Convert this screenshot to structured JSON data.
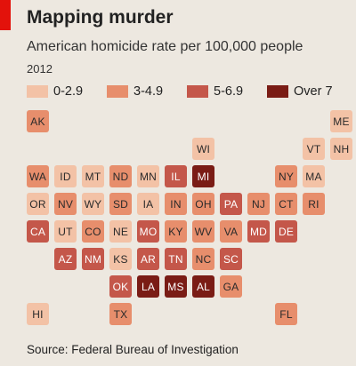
{
  "header": {
    "title": "Mapping murder",
    "subtitle": "American homicide rate per 100,000 people",
    "year": "2012"
  },
  "legend": [
    {
      "label": "0-2.9",
      "color": "#f3c2a6"
    },
    {
      "label": "3-4.9",
      "color": "#e78e6c"
    },
    {
      "label": "5-6.9",
      "color": "#c4574a"
    },
    {
      "label": "Over 7",
      "color": "#7a1c15"
    }
  ],
  "states": [
    {
      "abbr": "AK",
      "bin": 1,
      "row": 0,
      "col": 0
    },
    {
      "abbr": "ME",
      "bin": 0,
      "row": 0,
      "col": 11
    },
    {
      "abbr": "WI",
      "bin": 0,
      "row": 1,
      "col": 6
    },
    {
      "abbr": "VT",
      "bin": 0,
      "row": 1,
      "col": 10
    },
    {
      "abbr": "NH",
      "bin": 0,
      "row": 1,
      "col": 11
    },
    {
      "abbr": "WA",
      "bin": 1,
      "row": 2,
      "col": 0
    },
    {
      "abbr": "ID",
      "bin": 0,
      "row": 2,
      "col": 1
    },
    {
      "abbr": "MT",
      "bin": 0,
      "row": 2,
      "col": 2
    },
    {
      "abbr": "ND",
      "bin": 1,
      "row": 2,
      "col": 3
    },
    {
      "abbr": "MN",
      "bin": 0,
      "row": 2,
      "col": 4
    },
    {
      "abbr": "IL",
      "bin": 2,
      "row": 2,
      "col": 5
    },
    {
      "abbr": "MI",
      "bin": 3,
      "row": 2,
      "col": 6
    },
    {
      "abbr": "NY",
      "bin": 1,
      "row": 2,
      "col": 9
    },
    {
      "abbr": "MA",
      "bin": 0,
      "row": 2,
      "col": 10
    },
    {
      "abbr": "OR",
      "bin": 0,
      "row": 3,
      "col": 0
    },
    {
      "abbr": "NV",
      "bin": 1,
      "row": 3,
      "col": 1
    },
    {
      "abbr": "WY",
      "bin": 0,
      "row": 3,
      "col": 2
    },
    {
      "abbr": "SD",
      "bin": 1,
      "row": 3,
      "col": 3
    },
    {
      "abbr": "IA",
      "bin": 0,
      "row": 3,
      "col": 4
    },
    {
      "abbr": "IN",
      "bin": 1,
      "row": 3,
      "col": 5
    },
    {
      "abbr": "OH",
      "bin": 1,
      "row": 3,
      "col": 6
    },
    {
      "abbr": "PA",
      "bin": 2,
      "row": 3,
      "col": 7
    },
    {
      "abbr": "NJ",
      "bin": 1,
      "row": 3,
      "col": 8
    },
    {
      "abbr": "CT",
      "bin": 1,
      "row": 3,
      "col": 9
    },
    {
      "abbr": "RI",
      "bin": 1,
      "row": 3,
      "col": 10
    },
    {
      "abbr": "CA",
      "bin": 2,
      "row": 4,
      "col": 0
    },
    {
      "abbr": "UT",
      "bin": 0,
      "row": 4,
      "col": 1
    },
    {
      "abbr": "CO",
      "bin": 1,
      "row": 4,
      "col": 2
    },
    {
      "abbr": "NE",
      "bin": 0,
      "row": 4,
      "col": 3
    },
    {
      "abbr": "MO",
      "bin": 2,
      "row": 4,
      "col": 4
    },
    {
      "abbr": "KY",
      "bin": 1,
      "row": 4,
      "col": 5
    },
    {
      "abbr": "WV",
      "bin": 1,
      "row": 4,
      "col": 6
    },
    {
      "abbr": "VA",
      "bin": 1,
      "row": 4,
      "col": 7
    },
    {
      "abbr": "MD",
      "bin": 2,
      "row": 4,
      "col": 8
    },
    {
      "abbr": "DE",
      "bin": 2,
      "row": 4,
      "col": 9
    },
    {
      "abbr": "AZ",
      "bin": 2,
      "row": 5,
      "col": 1
    },
    {
      "abbr": "NM",
      "bin": 2,
      "row": 5,
      "col": 2
    },
    {
      "abbr": "KS",
      "bin": 0,
      "row": 5,
      "col": 3
    },
    {
      "abbr": "AR",
      "bin": 2,
      "row": 5,
      "col": 4
    },
    {
      "abbr": "TN",
      "bin": 2,
      "row": 5,
      "col": 5
    },
    {
      "abbr": "NC",
      "bin": 1,
      "row": 5,
      "col": 6
    },
    {
      "abbr": "SC",
      "bin": 2,
      "row": 5,
      "col": 7
    },
    {
      "abbr": "OK",
      "bin": 2,
      "row": 6,
      "col": 3
    },
    {
      "abbr": "LA",
      "bin": 3,
      "row": 6,
      "col": 4
    },
    {
      "abbr": "MS",
      "bin": 3,
      "row": 6,
      "col": 5
    },
    {
      "abbr": "AL",
      "bin": 3,
      "row": 6,
      "col": 6
    },
    {
      "abbr": "GA",
      "bin": 1,
      "row": 6,
      "col": 7
    },
    {
      "abbr": "HI",
      "bin": 0,
      "row": 7,
      "col": 0
    },
    {
      "abbr": "TX",
      "bin": 1,
      "row": 7,
      "col": 3
    },
    {
      "abbr": "FL",
      "bin": 1,
      "row": 7,
      "col": 9
    }
  ],
  "source": "Source: Federal Bureau of Investigation"
}
